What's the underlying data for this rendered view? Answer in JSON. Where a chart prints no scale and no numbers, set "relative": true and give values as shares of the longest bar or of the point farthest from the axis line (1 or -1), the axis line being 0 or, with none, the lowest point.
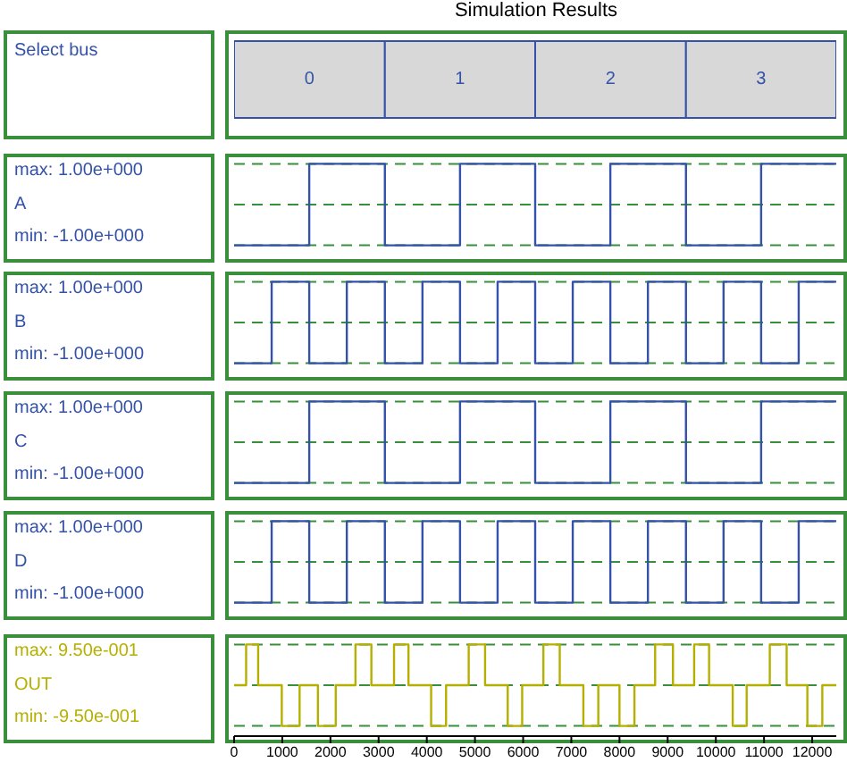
{
  "chart_data": [
    {
      "type": "bar",
      "title": "Simulation Results",
      "ylabel": "Select bus",
      "orientation": "horizontal",
      "stacked": true,
      "categories": [
        null
      ],
      "series": [
        {
          "name": "0",
          "color": "#d8d8d8",
          "values": [
            3130
          ]
        },
        {
          "name": "1",
          "color": "#d8d8d8",
          "values": [
            3120
          ]
        },
        {
          "name": "2",
          "color": "#d8d8d8",
          "values": [
            3130
          ]
        },
        {
          "name": "3",
          "color": "#d8d8d8",
          "values": [
            3120
          ]
        }
      ],
      "xlim": [
        0,
        12500
      ],
      "tick_labels": false
    },
    {
      "type": "step",
      "ylabel": "A",
      "relative": true,
      "x": [
        0,
        1560,
        3130,
        4690,
        6250,
        7810,
        9380,
        10940,
        12500
      ],
      "series": [
        {
          "color": "#3352a8",
          "values": [
            -1,
            1,
            -1,
            1,
            -1,
            1,
            -1,
            1,
            1
          ]
        }
      ],
      "xlim": [
        0,
        12500
      ],
      "ref_lines": [
        {
          "axis": "y",
          "value": 1,
          "color": "#3a8f3a",
          "line_style": "dashed"
        },
        {
          "axis": "y",
          "value": 0,
          "color": "#3a8f3a",
          "line_style": "dashed"
        },
        {
          "axis": "y",
          "value": -1,
          "color": "#3a8f3a",
          "line_style": "dashed"
        }
      ],
      "annotations": [
        "max: 1.00e+000",
        "min: -1.00e+000"
      ],
      "tick_labels": false
    },
    {
      "type": "step",
      "ylabel": "B",
      "relative": true,
      "x": [
        0,
        780,
        1560,
        2340,
        3130,
        3910,
        4690,
        5470,
        6250,
        7030,
        7810,
        8590,
        9380,
        10160,
        10940,
        11720,
        12500
      ],
      "series": [
        {
          "color": "#3352a8",
          "values": [
            -1,
            1,
            -1,
            1,
            -1,
            1,
            -1,
            1,
            -1,
            1,
            -1,
            1,
            -1,
            1,
            -1,
            1,
            1
          ]
        }
      ],
      "xlim": [
        0,
        12500
      ],
      "ref_lines": [
        {
          "axis": "y",
          "value": 1,
          "color": "#3a8f3a",
          "line_style": "dashed"
        },
        {
          "axis": "y",
          "value": 0,
          "color": "#3a8f3a",
          "line_style": "dashed"
        },
        {
          "axis": "y",
          "value": -1,
          "color": "#3a8f3a",
          "line_style": "dashed"
        }
      ],
      "annotations": [
        "max: 1.00e+000",
        "min: -1.00e+000"
      ],
      "tick_labels": false
    },
    {
      "type": "step",
      "ylabel": "C",
      "relative": true,
      "x": [
        0,
        1560,
        3130,
        4690,
        6250,
        7810,
        9380,
        10940,
        12500
      ],
      "series": [
        {
          "color": "#3352a8",
          "values": [
            -1,
            1,
            -1,
            1,
            -1,
            1,
            -1,
            1,
            1
          ]
        }
      ],
      "xlim": [
        0,
        12500
      ],
      "ref_lines": [
        {
          "axis": "y",
          "value": 1,
          "color": "#3a8f3a",
          "line_style": "dashed"
        },
        {
          "axis": "y",
          "value": 0,
          "color": "#3a8f3a",
          "line_style": "dashed"
        },
        {
          "axis": "y",
          "value": -1,
          "color": "#3a8f3a",
          "line_style": "dashed"
        }
      ],
      "annotations": [
        "max: 1.00e+000",
        "min: -1.00e+000"
      ],
      "tick_labels": false
    },
    {
      "type": "step",
      "ylabel": "D",
      "relative": true,
      "x": [
        0,
        780,
        1560,
        2340,
        3130,
        3910,
        4690,
        5470,
        6250,
        7030,
        7810,
        8590,
        9380,
        10160,
        10940,
        11720,
        12500
      ],
      "series": [
        {
          "color": "#3352a8",
          "values": [
            -1,
            1,
            -1,
            1,
            -1,
            1,
            -1,
            1,
            -1,
            1,
            -1,
            1,
            -1,
            1,
            -1,
            1,
            1
          ]
        }
      ],
      "xlim": [
        0,
        12500
      ],
      "ref_lines": [
        {
          "axis": "y",
          "value": 1,
          "color": "#3a8f3a",
          "line_style": "dashed"
        },
        {
          "axis": "y",
          "value": 0,
          "color": "#3a8f3a",
          "line_style": "dashed"
        },
        {
          "axis": "y",
          "value": -1,
          "color": "#3a8f3a",
          "line_style": "dashed"
        }
      ],
      "annotations": [
        "max: 1.00e+000",
        "min: -1.00e+000"
      ],
      "tick_labels": false
    },
    {
      "type": "step",
      "ylabel": "OUT",
      "relative": true,
      "x": [
        0,
        250,
        500,
        990,
        1360,
        1740,
        2110,
        2520,
        2850,
        3320,
        3620,
        4090,
        4400,
        4870,
        5210,
        5680,
        5980,
        6420,
        6760,
        7250,
        7560,
        8000,
        8310,
        8740,
        9110,
        9550,
        9860,
        10350,
        10640,
        11120,
        11470,
        11900,
        12210,
        12500
      ],
      "series": [
        {
          "color": "#b5b000",
          "values": [
            0,
            1,
            0,
            -1,
            0,
            -1,
            0,
            1,
            0,
            1,
            0,
            -1,
            0,
            1,
            0,
            -1,
            0,
            1,
            0,
            -1,
            0,
            -1,
            0,
            1,
            0,
            1,
            0,
            -1,
            0,
            1,
            0,
            -1,
            0,
            0
          ]
        }
      ],
      "xlim": [
        0,
        12500
      ],
      "xticks": [
        0,
        1000,
        2000,
        3000,
        4000,
        5000,
        6000,
        7000,
        8000,
        9000,
        10000,
        11000,
        12000
      ],
      "ref_lines": [
        {
          "axis": "y",
          "value": 1,
          "color": "#3a8f3a",
          "line_style": "dashed"
        },
        {
          "axis": "y",
          "value": 0,
          "color": "#3a8f3a",
          "line_style": "dashed"
        },
        {
          "axis": "y",
          "value": -1,
          "color": "#3a8f3a",
          "line_style": "dashed"
        }
      ],
      "annotations": [
        "max: 9.50e-001",
        "min: -9.50e-001"
      ],
      "tick_labels": "x"
    }
  ]
}
